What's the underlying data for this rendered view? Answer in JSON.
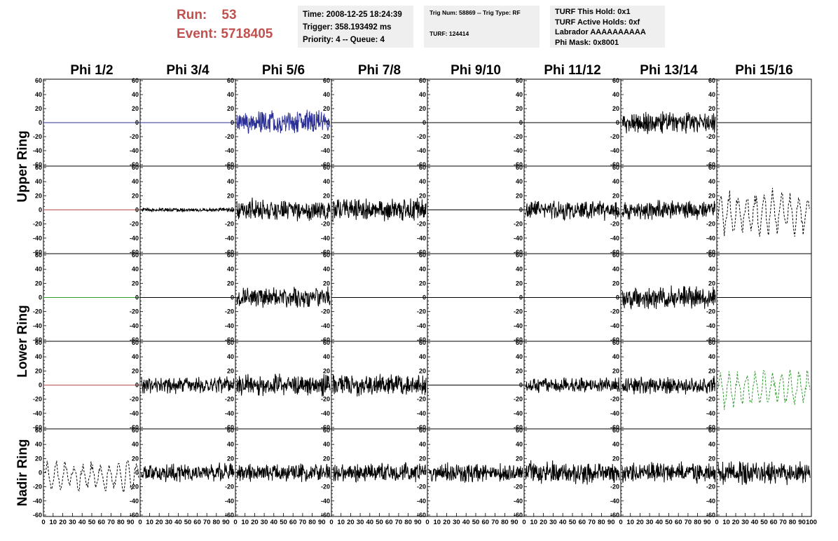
{
  "header": {
    "run_label": "Run:",
    "run_value": "53",
    "event_label": "Event:",
    "event_value": "5718405",
    "time": "Time: 2008-12-25 18:24:39",
    "trigger": "Trigger: 358.193492 ms",
    "priority": "Priority: 4 -- Queue: 4",
    "trig_num": "Trig Num: 58869 -- Trig Type: RF",
    "turf": "TURF: 124414",
    "turf_this_hold": "TURF This Hold: 0x1",
    "turf_active_holds": "TURF Active Holds: 0xf",
    "labrador": "Labrador AAAAAAAAAA",
    "phi_mask": "Phi Mask: 0x8001"
  },
  "colors": {
    "header_red": "#c0504d",
    "info_bg": "#efefef",
    "blue": "#2b2f96",
    "red": "#c0504d",
    "green": "#2e9a2e",
    "black": "#000000"
  },
  "chart_data": {
    "type": "line",
    "columns": [
      "Phi 1/2",
      "Phi 3/4",
      "Phi 5/6",
      "Phi 7/8",
      "Phi 9/10",
      "Phi 11/12",
      "Phi 13/14",
      "Phi 15/16"
    ],
    "ring_labels": [
      {
        "text": "Upper Ring",
        "rows": [
          0,
          1
        ]
      },
      {
        "text": "Lower Ring",
        "rows": [
          2,
          3
        ]
      },
      {
        "text": "Nadir Ring",
        "rows": [
          4,
          4
        ]
      }
    ],
    "ylim": [
      -62,
      62
    ],
    "xlim": [
      0,
      100
    ],
    "yticks": [
      60,
      40,
      20,
      0,
      -20,
      -40,
      -60
    ],
    "xtick_labels": [
      "0",
      "10",
      "20",
      "30",
      "40",
      "50",
      "60",
      "70",
      "80",
      "90",
      "100"
    ],
    "panels": [
      {
        "row": 0,
        "col": 0,
        "kind": "flat",
        "color": "blue"
      },
      {
        "row": 0,
        "col": 1,
        "kind": "flat",
        "color": "blue"
      },
      {
        "row": 0,
        "col": 2,
        "kind": "noise",
        "amp": 16,
        "color": "blue"
      },
      {
        "row": 0,
        "col": 3,
        "kind": "flat",
        "color": "black"
      },
      {
        "row": 0,
        "col": 4,
        "kind": "flat",
        "color": "black"
      },
      {
        "row": 0,
        "col": 5,
        "kind": "flat",
        "color": "black"
      },
      {
        "row": 0,
        "col": 6,
        "kind": "noise",
        "amp": 14,
        "color": "black"
      },
      {
        "row": 0,
        "col": 7,
        "kind": "flat",
        "color": "black"
      },
      {
        "row": 1,
        "col": 0,
        "kind": "flat",
        "color": "red"
      },
      {
        "row": 1,
        "col": 1,
        "kind": "noise",
        "amp": 2.5,
        "color": "black"
      },
      {
        "row": 1,
        "col": 2,
        "kind": "noise",
        "amp": 15,
        "color": "black"
      },
      {
        "row": 1,
        "col": 3,
        "kind": "noise",
        "amp": 15,
        "color": "black"
      },
      {
        "row": 1,
        "col": 4,
        "kind": "flat",
        "color": "black"
      },
      {
        "row": 1,
        "col": 5,
        "kind": "noise",
        "amp": 13,
        "color": "black"
      },
      {
        "row": 1,
        "col": 6,
        "kind": "noise",
        "amp": 13,
        "color": "black"
      },
      {
        "row": 1,
        "col": 7,
        "kind": "dash",
        "amp": 30,
        "color": "black"
      },
      {
        "row": 2,
        "col": 0,
        "kind": "flat",
        "color": "green"
      },
      {
        "row": 2,
        "col": 1,
        "kind": "flat",
        "color": "black"
      },
      {
        "row": 2,
        "col": 2,
        "kind": "noise",
        "amp": 14,
        "color": "black"
      },
      {
        "row": 2,
        "col": 3,
        "kind": "flat",
        "color": "black"
      },
      {
        "row": 2,
        "col": 4,
        "kind": "flat",
        "color": "black"
      },
      {
        "row": 2,
        "col": 5,
        "kind": "flat",
        "color": "black"
      },
      {
        "row": 2,
        "col": 6,
        "kind": "noise",
        "amp": 15,
        "color": "black"
      },
      {
        "row": 2,
        "col": 7,
        "kind": "flat",
        "color": "black"
      },
      {
        "row": 3,
        "col": 0,
        "kind": "flat",
        "color": "red"
      },
      {
        "row": 3,
        "col": 1,
        "kind": "noise",
        "amp": 11,
        "color": "black"
      },
      {
        "row": 3,
        "col": 2,
        "kind": "noise",
        "amp": 14,
        "color": "black"
      },
      {
        "row": 3,
        "col": 3,
        "kind": "noise",
        "amp": 14,
        "color": "black"
      },
      {
        "row": 3,
        "col": 4,
        "kind": "flat",
        "color": "black"
      },
      {
        "row": 3,
        "col": 5,
        "kind": "noise",
        "amp": 10,
        "color": "black"
      },
      {
        "row": 3,
        "col": 6,
        "kind": "noise",
        "amp": 12,
        "color": "black"
      },
      {
        "row": 3,
        "col": 7,
        "kind": "dash",
        "amp": 25,
        "color": "green"
      },
      {
        "row": 4,
        "col": 0,
        "kind": "dash",
        "amp": 20,
        "color": "black"
      },
      {
        "row": 4,
        "col": 1,
        "kind": "noise",
        "amp": 12,
        "color": "black"
      },
      {
        "row": 4,
        "col": 2,
        "kind": "noise",
        "amp": 12,
        "color": "black"
      },
      {
        "row": 4,
        "col": 3,
        "kind": "noise",
        "amp": 13,
        "color": "black"
      },
      {
        "row": 4,
        "col": 4,
        "kind": "noise",
        "amp": 13,
        "color": "black"
      },
      {
        "row": 4,
        "col": 5,
        "kind": "noise",
        "amp": 15,
        "color": "black"
      },
      {
        "row": 4,
        "col": 6,
        "kind": "noise",
        "amp": 14,
        "color": "black"
      },
      {
        "row": 4,
        "col": 7,
        "kind": "noise",
        "amp": 16,
        "color": "black"
      }
    ]
  }
}
